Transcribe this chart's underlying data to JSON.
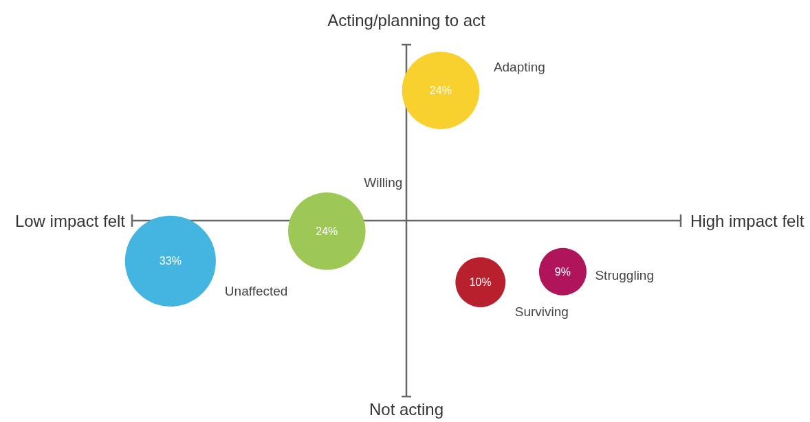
{
  "chart_data": {
    "type": "other",
    "value_labels": [
      "24%",
      "24%",
      "33%",
      "10%",
      "9%"
    ],
    "annotations": [
      "Acting/planning to act",
      "Not acting",
      "Low impact felt",
      "High impact felt"
    ],
    "categories": [
      "Adapting",
      "Willing",
      "Unaffected",
      "Surviving",
      "Struggling"
    ],
    "values": [
      24,
      24,
      33,
      10,
      9
    ],
    "colors": [
      "#f8d12e",
      "#9dc856",
      "#44b4e0",
      "#b8202e",
      "#b0145b"
    ]
  }
}
